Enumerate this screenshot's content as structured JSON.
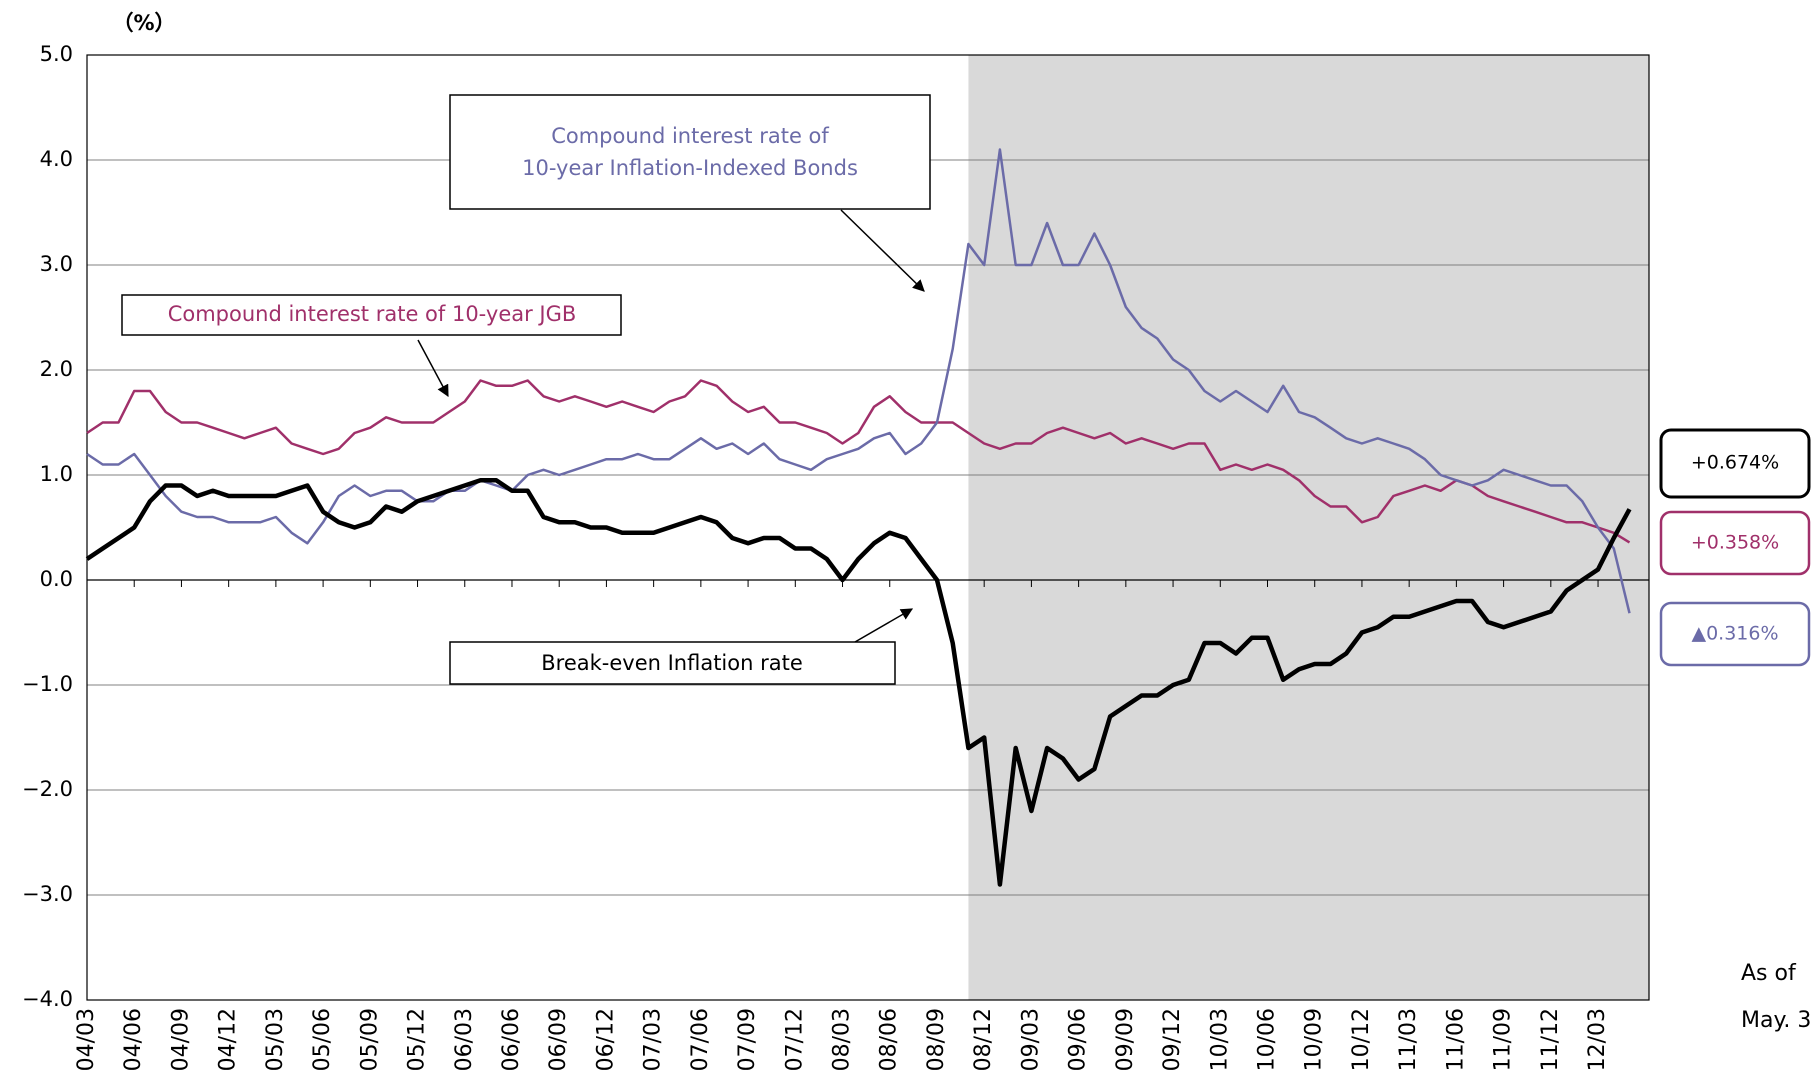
{
  "chart_data": {
    "type": "line",
    "unit_label": "（%）",
    "ylim": [
      -4,
      5
    ],
    "yticks": [
      {
        "value": 5,
        "label": "5.0"
      },
      {
        "value": 4,
        "label": "4.0"
      },
      {
        "value": 3,
        "label": "3.0"
      },
      {
        "value": 2,
        "label": "2.0"
      },
      {
        "value": 1,
        "label": "1.0"
      },
      {
        "value": 0,
        "label": "0.0"
      },
      {
        "value": -1,
        "label": "−1.0"
      },
      {
        "value": -2,
        "label": "−2.0"
      },
      {
        "value": -3,
        "label": "−3.0"
      },
      {
        "value": -4,
        "label": "−4.0"
      }
    ],
    "grid": true,
    "shade": {
      "from_index": 56,
      "color": "#d9d9d9"
    },
    "categories": [
      "04/03",
      null,
      null,
      "04/06",
      null,
      null,
      "04/09",
      null,
      null,
      "04/12",
      null,
      null,
      "05/03",
      null,
      null,
      "05/06",
      null,
      null,
      "05/09",
      null,
      null,
      "05/12",
      null,
      null,
      "06/03",
      null,
      null,
      "06/06",
      null,
      null,
      "06/09",
      null,
      null,
      "06/12",
      null,
      null,
      "07/03",
      null,
      null,
      "07/06",
      null,
      null,
      "07/09",
      null,
      null,
      "07/12",
      null,
      null,
      "08/03",
      null,
      null,
      "08/06",
      null,
      null,
      "08/09",
      null,
      null,
      "08/12",
      null,
      null,
      "09/03",
      null,
      null,
      "09/06",
      null,
      null,
      "09/09",
      null,
      null,
      "09/12",
      null,
      null,
      "10/03",
      null,
      null,
      "10/06",
      null,
      null,
      "10/09",
      null,
      null,
      "10/12",
      null,
      null,
      "11/03",
      null,
      null,
      "11/06",
      null,
      null,
      "11/09",
      null,
      null,
      "11/12",
      null,
      null,
      "12/03",
      null,
      null
    ],
    "series": [
      {
        "color": "#a0306a",
        "width": 2.5,
        "end_label": "+0.358%",
        "values": [
          1.4,
          1.5,
          1.5,
          1.8,
          1.8,
          1.6,
          1.5,
          1.5,
          1.45,
          1.4,
          1.35,
          1.4,
          1.45,
          1.3,
          1.25,
          1.2,
          1.25,
          1.4,
          1.45,
          1.55,
          1.5,
          1.5,
          1.5,
          1.6,
          1.7,
          1.9,
          1.85,
          1.85,
          1.9,
          1.75,
          1.7,
          1.75,
          1.7,
          1.65,
          1.7,
          1.65,
          1.6,
          1.7,
          1.75,
          1.9,
          1.85,
          1.7,
          1.6,
          1.65,
          1.5,
          1.5,
          1.45,
          1.4,
          1.3,
          1.4,
          1.65,
          1.75,
          1.6,
          1.5,
          1.5,
          1.5,
          1.4,
          1.3,
          1.25,
          1.3,
          1.3,
          1.4,
          1.45,
          1.4,
          1.35,
          1.4,
          1.3,
          1.35,
          1.3,
          1.25,
          1.3,
          1.3,
          1.05,
          1.1,
          1.05,
          1.1,
          1.05,
          0.95,
          0.8,
          0.7,
          0.7,
          0.55,
          0.6,
          0.8,
          0.85,
          0.9,
          0.85,
          0.95,
          0.9,
          0.8,
          0.75,
          0.7,
          0.65,
          0.6,
          0.55,
          0.55,
          0.5,
          0.45,
          0.358
        ]
      },
      {
        "color": "#6b6ba8",
        "width": 2.5,
        "end_label": "▲0.316%",
        "values": [
          1.2,
          1.1,
          1.1,
          1.2,
          1.0,
          0.8,
          0.65,
          0.6,
          0.6,
          0.55,
          0.55,
          0.55,
          0.6,
          0.45,
          0.35,
          0.55,
          0.8,
          0.9,
          0.8,
          0.85,
          0.85,
          0.75,
          0.75,
          0.85,
          0.85,
          0.95,
          0.9,
          0.85,
          1.0,
          1.05,
          1.0,
          1.05,
          1.1,
          1.15,
          1.15,
          1.2,
          1.15,
          1.15,
          1.25,
          1.35,
          1.25,
          1.3,
          1.2,
          1.3,
          1.15,
          1.1,
          1.05,
          1.15,
          1.2,
          1.25,
          1.35,
          1.4,
          1.2,
          1.3,
          1.5,
          2.2,
          3.2,
          3.0,
          4.1,
          3.0,
          3.0,
          3.4,
          3.0,
          3.0,
          3.3,
          3.0,
          2.6,
          2.4,
          2.3,
          2.1,
          2.0,
          1.8,
          1.7,
          1.8,
          1.7,
          1.6,
          1.85,
          1.6,
          1.55,
          1.45,
          1.35,
          1.3,
          1.35,
          1.3,
          1.25,
          1.15,
          1.0,
          0.95,
          0.9,
          0.95,
          1.05,
          1.0,
          0.95,
          0.9,
          0.9,
          0.75,
          0.5,
          0.3,
          -0.316
        ]
      },
      {
        "color": "#000000",
        "width": 4.5,
        "end_label": "+0.674%",
        "values": [
          0.2,
          0.3,
          0.4,
          0.5,
          0.75,
          0.9,
          0.9,
          0.8,
          0.85,
          0.8,
          0.8,
          0.8,
          0.8,
          0.85,
          0.9,
          0.65,
          0.55,
          0.5,
          0.55,
          0.7,
          0.65,
          0.75,
          0.8,
          0.85,
          0.9,
          0.95,
          0.95,
          0.85,
          0.85,
          0.6,
          0.55,
          0.55,
          0.5,
          0.5,
          0.45,
          0.45,
          0.45,
          0.5,
          0.55,
          0.6,
          0.55,
          0.4,
          0.35,
          0.4,
          0.4,
          0.3,
          0.3,
          0.2,
          0.0,
          0.2,
          0.35,
          0.45,
          0.4,
          0.2,
          0.0,
          -0.6,
          -1.6,
          -1.5,
          -2.9,
          -1.6,
          -2.2,
          -1.6,
          -1.7,
          -1.9,
          -1.8,
          -1.3,
          -1.2,
          -1.1,
          -1.1,
          -1.0,
          -0.95,
          -0.6,
          -0.6,
          -0.7,
          -0.55,
          -0.55,
          -0.95,
          -0.85,
          -0.8,
          -0.8,
          -0.7,
          -0.5,
          -0.45,
          -0.35,
          -0.35,
          -0.3,
          -0.25,
          -0.2,
          -0.2,
          -0.4,
          -0.45,
          -0.4,
          -0.35,
          -0.3,
          -0.1,
          0.0,
          0.1,
          0.4,
          0.674
        ]
      }
    ],
    "annotations": [
      {
        "lines": [
          "Compound interest rate of",
          "10-year Inflation-Indexed Bonds"
        ],
        "color": "#6b6ba8"
      },
      {
        "lines": [
          "Compound interest rate of 10-year JGB"
        ],
        "color": "#a0306a"
      },
      {
        "lines": [
          "Break-even Inflation rate"
        ],
        "color": "#000000"
      }
    ],
    "as_of": [
      "As of",
      "May. 3"
    ]
  }
}
